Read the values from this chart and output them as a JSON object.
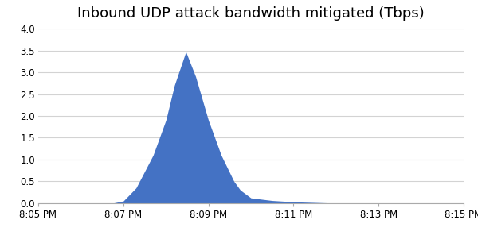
{
  "title": "Inbound UDP attack bandwidth mitigated (Tbps)",
  "title_fontsize": 13,
  "fill_color": "#4472C4",
  "background_color": "#ffffff",
  "grid_color": "#d3d3d3",
  "ylim": [
    0,
    4
  ],
  "yticks": [
    0,
    0.5,
    1,
    1.5,
    2,
    2.5,
    3,
    3.5,
    4
  ],
  "x_labels": [
    "8:05 PM",
    "8:07 PM",
    "8:09 PM",
    "8:11 PM",
    "8:13 PM",
    "8:15 PM"
  ],
  "x_ticks": [
    0,
    2,
    4,
    6,
    8,
    10
  ],
  "xlim": [
    0,
    10
  ],
  "time_points": [
    0,
    1.5,
    1.75,
    2.0,
    2.3,
    2.7,
    3.0,
    3.2,
    3.47,
    3.7,
    4.0,
    4.3,
    4.6,
    4.75,
    5.0,
    5.5,
    6.0,
    7.0,
    10
  ],
  "data_values": [
    0,
    0,
    0,
    0.05,
    0.35,
    1.1,
    1.9,
    2.7,
    3.47,
    2.9,
    1.9,
    1.1,
    0.5,
    0.3,
    0.12,
    0.06,
    0.03,
    0,
    0
  ]
}
